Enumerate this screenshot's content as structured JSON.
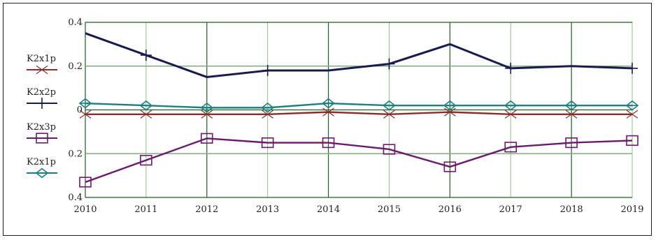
{
  "chart_data": {
    "type": "line",
    "title": "",
    "xlabel": "",
    "ylabel": "",
    "x": [
      2010,
      2011,
      2012,
      2013,
      2014,
      2015,
      2016,
      2017,
      2018,
      2019
    ],
    "xlim": [
      2010,
      2019
    ],
    "ylim": [
      -0.4,
      0.4
    ],
    "y_tick_labels": [
      "0.4",
      "0.2",
      "0",
      "0.2",
      "0.4"
    ],
    "y_tick_values": [
      0.4,
      0.2,
      0,
      -0.2,
      -0.4
    ],
    "x_tick_labels": [
      "2010",
      "2011",
      "2012",
      "2013",
      "2014",
      "2015",
      "2016",
      "2017",
      "2018",
      "2019"
    ],
    "grid": true,
    "legend_position": "left",
    "series": [
      {
        "name": "K2x1p",
        "color": "#8b2c2c",
        "marker": "x-icon",
        "values": [
          -0.02,
          -0.02,
          -0.02,
          -0.02,
          -0.01,
          -0.02,
          -0.01,
          -0.02,
          -0.02,
          -0.02
        ]
      },
      {
        "name": "K2x2p",
        "color": "#1a1a4e",
        "marker": "plus-icon",
        "values": [
          0.35,
          0.25,
          0.15,
          0.18,
          0.18,
          0.21,
          0.3,
          0.19,
          0.2,
          0.19
        ]
      },
      {
        "name": "K2x3p",
        "color": "#6b1a6b",
        "marker": "square-icon",
        "values": [
          -0.33,
          -0.23,
          -0.13,
          -0.15,
          -0.15,
          -0.18,
          -0.26,
          -0.17,
          -0.15,
          -0.14
        ]
      },
      {
        "name": "K2x1p",
        "color": "#1a8080",
        "marker": "diamond-icon",
        "values": [
          0.03,
          0.02,
          0.01,
          0.01,
          0.03,
          0.02,
          0.02,
          0.02,
          0.02,
          0.02
        ]
      }
    ]
  }
}
